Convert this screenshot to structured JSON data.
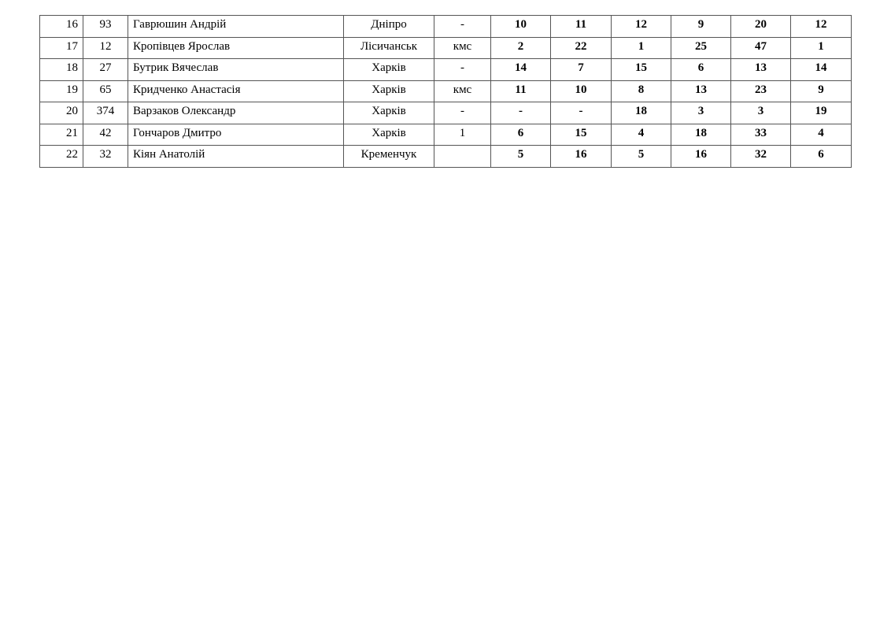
{
  "results_table": {
    "rows": [
      {
        "place": "16",
        "bib": "93",
        "name": "Гаврюшин Андрій",
        "city": "Дніпро",
        "rank": "-",
        "scores": [
          "10",
          "11",
          "12",
          "9",
          "20",
          "12"
        ]
      },
      {
        "place": "17",
        "bib": "12",
        "name": "Кропівцев Ярослав",
        "city": "Лісичанськ",
        "rank": "кмс",
        "scores": [
          "2",
          "22",
          "1",
          "25",
          "47",
          "1"
        ]
      },
      {
        "place": "18",
        "bib": "27",
        "name": "Бутрик Вячеслав",
        "city": "Харків",
        "rank": "-",
        "scores": [
          "14",
          "7",
          "15",
          "6",
          "13",
          "14"
        ]
      },
      {
        "place": "19",
        "bib": "65",
        "name": "Кридченко Анастасія",
        "city": "Харків",
        "rank": "кмс",
        "scores": [
          "11",
          "10",
          "8",
          "13",
          "23",
          "9"
        ]
      },
      {
        "place": "20",
        "bib": "374",
        "name": "Варзаков Олександр",
        "city": "Харків",
        "rank": "-",
        "scores": [
          "-",
          "-",
          "18",
          "3",
          "3",
          "19"
        ]
      },
      {
        "place": "21",
        "bib": "42",
        "name": "Гончаров Дмитро",
        "city": "Харків",
        "rank": "1",
        "scores": [
          "6",
          "15",
          "4",
          "18",
          "33",
          "4"
        ]
      },
      {
        "place": "22",
        "bib": "32",
        "name": "Кіян Анатолій",
        "city": "Кременчук",
        "rank": "",
        "scores": [
          "5",
          "16",
          "5",
          "16",
          "32",
          "6"
        ]
      }
    ]
  }
}
